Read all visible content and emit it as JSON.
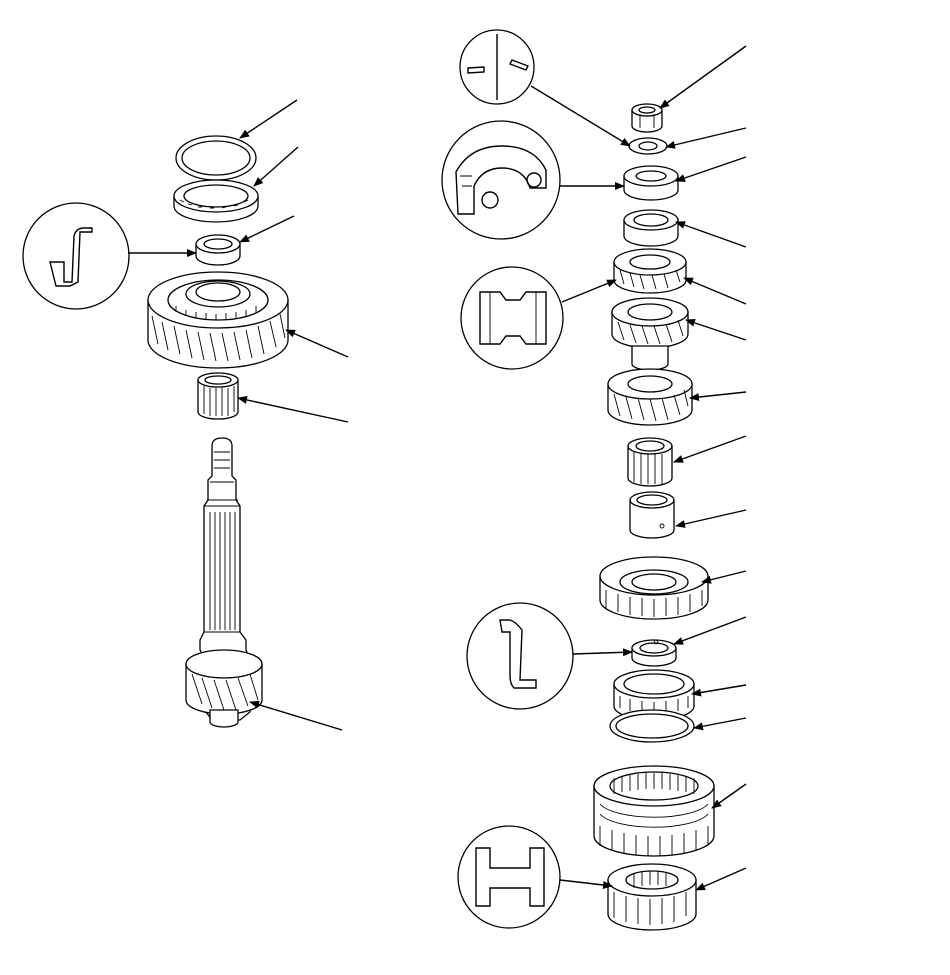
{
  "diagram": {
    "callout_count": 27,
    "detail_views": [
      "synchro-ring-profile-detail",
      "collar-cross-section-detail",
      "ball-bearing-cutaway-detail",
      "thrust-washer-detail",
      "snap-ring-profile-detail",
      "hub-cross-section-detail"
    ]
  },
  "colors": {
    "line": "#000000",
    "background": "#ffffff"
  }
}
